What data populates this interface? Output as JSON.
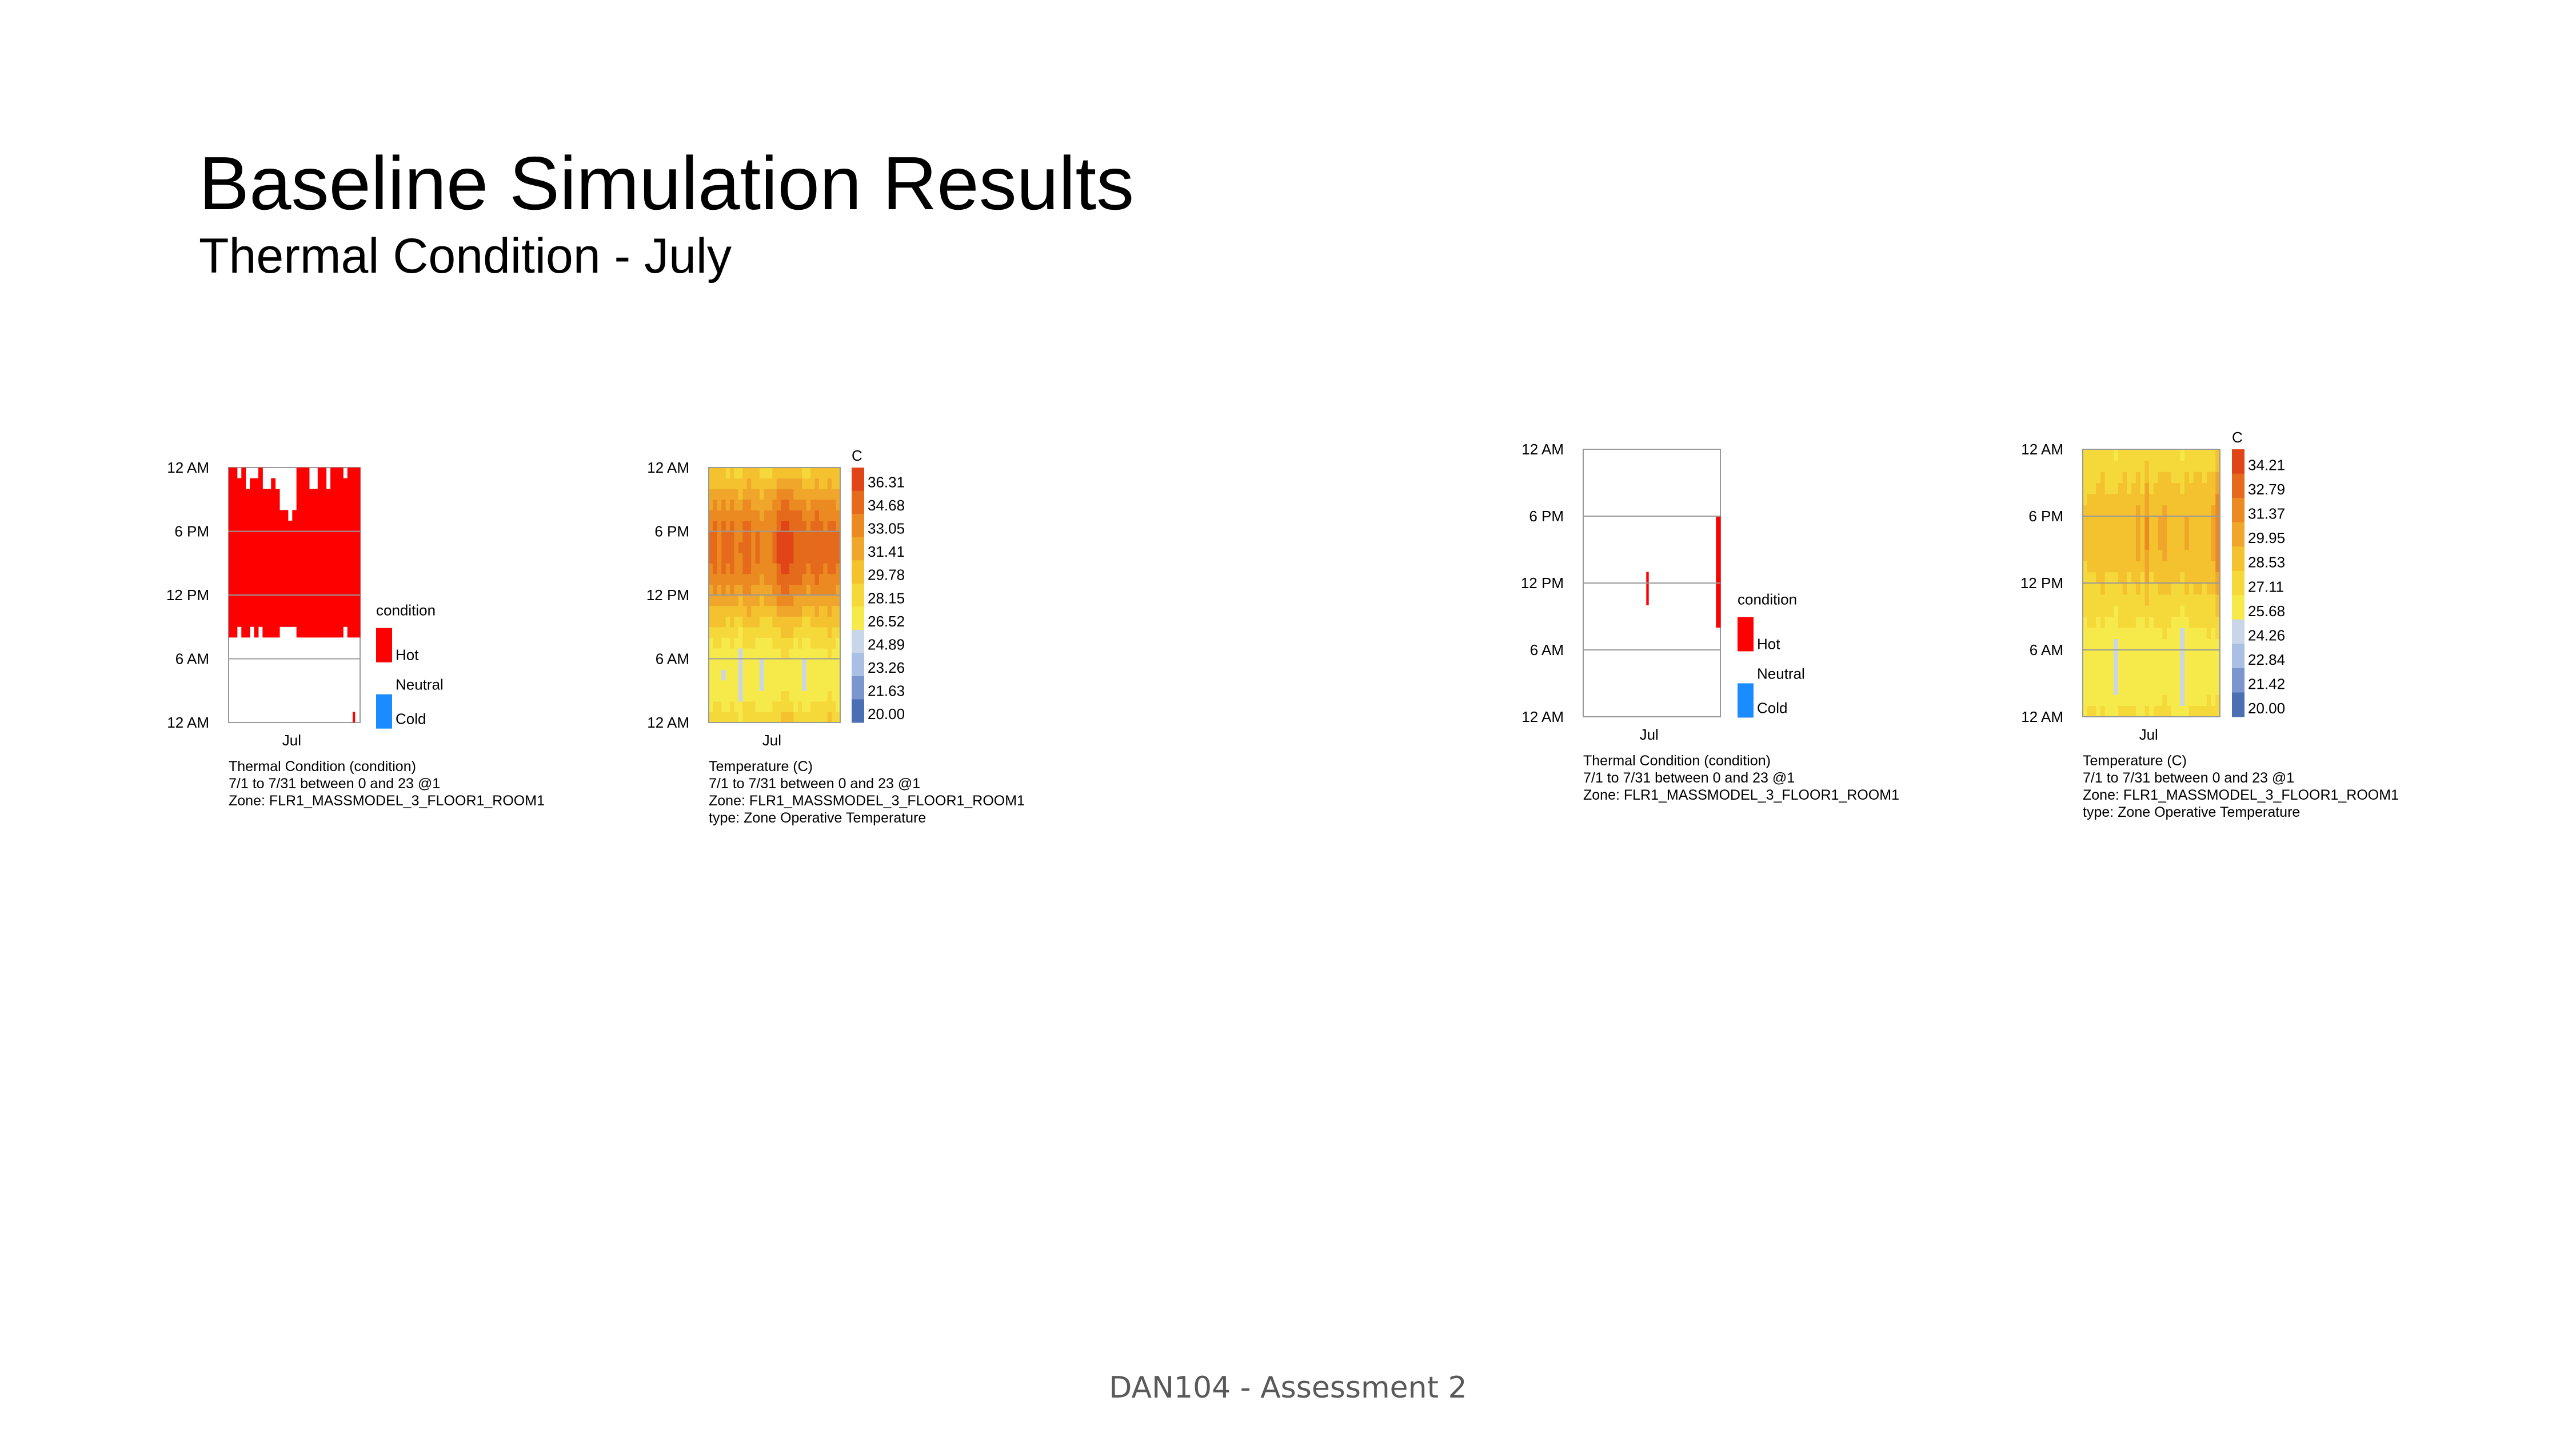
{
  "slide": {
    "title": "Baseline Simulation Results",
    "subtitle": "Thermal Condition - July",
    "footer": "DAN104 - Assessment 2"
  },
  "colors": {
    "hot": "#ff0000",
    "cold": "#1a8cff",
    "scale": [
      "#4a6fb3",
      "#7b96cf",
      "#a9bfe3",
      "#c9d6e8",
      "#f6ea4a",
      "#f5d93a",
      "#f3c22e",
      "#f0a62a",
      "#ec8a22",
      "#e66a1c",
      "#e04417"
    ]
  },
  "chart_data": [
    {
      "type": "heatmap",
      "id": "baseline-condition",
      "y_ticks": [
        "12 AM",
        "6 PM",
        "12 PM",
        "6 AM",
        "12 AM"
      ],
      "x_tick": "Jul",
      "legend_title": "condition",
      "legend_entries": [
        "Hot",
        "Neutral",
        "Cold"
      ],
      "caption": [
        "Thermal Condition (condition)",
        "7/1 to 7/31 between 0 and 23 @1",
        "Zone: FLR1_MASSMODEL_3_FLOOR1_ROOM1"
      ],
      "grid": true,
      "days": 31,
      "hot_hours_per_day": [
        [
          [
            8,
            23
          ]
        ],
        [
          [
            8,
            23
          ]
        ],
        [
          [
            9,
            22
          ]
        ],
        [
          [
            8,
            23
          ]
        ],
        [
          [
            8,
            21
          ]
        ],
        [
          [
            9,
            22
          ]
        ],
        [
          [
            8,
            22
          ]
        ],
        [
          [
            9,
            23
          ]
        ],
        [
          [
            8,
            21
          ]
        ],
        [
          [
            8,
            21
          ]
        ],
        [
          [
            8,
            22
          ]
        ],
        [
          [
            8,
            21
          ]
        ],
        [
          [
            9,
            19
          ]
        ],
        [
          [
            9,
            19
          ]
        ],
        [
          [
            9,
            18
          ]
        ],
        [
          [
            9,
            19
          ]
        ],
        [
          [
            8,
            23
          ]
        ],
        [
          [
            8,
            23
          ]
        ],
        [
          [
            8,
            23
          ]
        ],
        [
          [
            8,
            21
          ]
        ],
        [
          [
            8,
            21
          ]
        ],
        [
          [
            8,
            23
          ]
        ],
        [
          [
            8,
            23
          ]
        ],
        [
          [
            8,
            21
          ]
        ],
        [
          [
            8,
            23
          ]
        ],
        [
          [
            8,
            23
          ]
        ],
        [
          [
            8,
            23
          ]
        ],
        [
          [
            9,
            22
          ]
        ],
        [
          [
            8,
            23
          ]
        ],
        [
          [
            8,
            23
          ],
          [
            0,
            0
          ]
        ],
        [
          [
            8,
            23
          ]
        ]
      ]
    },
    {
      "type": "heatmap",
      "id": "baseline-temperature",
      "unit_label": "C",
      "y_ticks": [
        "12 AM",
        "6 PM",
        "12 PM",
        "6 AM",
        "12 AM"
      ],
      "x_tick": "Jul",
      "legend_values": [
        "36.31",
        "34.68",
        "33.05",
        "31.41",
        "29.78",
        "28.15",
        "26.52",
        "24.89",
        "23.26",
        "21.63",
        "20.00"
      ],
      "caption": [
        "Temperature (C)",
        "7/1 to 7/31 between 0 and 23 @1",
        "Zone: FLR1_MASSMODEL_3_FLOOR1_ROOM1",
        "type: Zone Operative Temperature"
      ],
      "range": [
        20.0,
        36.31
      ],
      "daily_min": [
        26.2,
        26.5,
        26.8,
        25.9,
        26.0,
        26.4,
        26.1,
        25.2,
        26.5,
        26.7,
        26.9,
        26.3,
        25.8,
        26.2,
        26.0,
        26.4,
        26.6,
        26.9,
        27.0,
        26.8,
        26.1,
        26.3,
        25.4,
        26.0,
        26.5,
        26.7,
        26.4,
        26.9,
        27.1,
        26.6,
        26.2
      ],
      "daily_max": [
        33.6,
        34.0,
        33.2,
        34.5,
        33.8,
        34.2,
        33.0,
        33.4,
        33.9,
        34.3,
        33.1,
        33.6,
        32.8,
        32.9,
        33.3,
        33.8,
        35.2,
        35.6,
        35.9,
        35.4,
        34.8,
        34.6,
        34.1,
        33.7,
        34.2,
        34.5,
        34.0,
        33.8,
        34.4,
        34.1,
        33.5
      ]
    },
    {
      "type": "heatmap",
      "id": "improved-condition",
      "y_ticks": [
        "12 AM",
        "6 PM",
        "12 PM",
        "6 AM",
        "12 AM"
      ],
      "x_tick": "Jul",
      "legend_title": "condition",
      "legend_entries": [
        "Hot",
        "Neutral",
        "Cold"
      ],
      "caption": [
        "Thermal Condition (condition)",
        "7/1 to 7/31 between 0 and 23 @1",
        "Zone: FLR1_MASSMODEL_3_FLOOR1_ROOM1"
      ],
      "grid": true,
      "days": 31,
      "hot_hours_per_day": [
        [],
        [],
        [],
        [],
        [],
        [],
        [],
        [],
        [],
        [],
        [],
        [],
        [],
        [],
        [
          [
            10,
            12
          ]
        ],
        [],
        [],
        [],
        [],
        [],
        [],
        [],
        [],
        [],
        [],
        [],
        [],
        [],
        [],
        [],
        [
          [
            8,
            17
          ]
        ]
      ]
    },
    {
      "type": "heatmap",
      "id": "improved-temperature",
      "unit_label": "C",
      "y_ticks": [
        "12 AM",
        "6 PM",
        "12 PM",
        "6 AM",
        "12 AM"
      ],
      "x_tick": "Jul",
      "legend_values": [
        "34.21",
        "32.79",
        "31.37",
        "29.95",
        "28.53",
        "27.11",
        "25.68",
        "24.26",
        "22.84",
        "21.42",
        "20.00"
      ],
      "caption": [
        "Temperature (C)",
        "7/1 to 7/31 between 0 and 23 @1",
        "Zone: FLR1_MASSMODEL_3_FLOOR1_ROOM1",
        "type: Zone Operative Temperature"
      ],
      "range": [
        20.0,
        34.21
      ],
      "daily_min": [
        25.6,
        25.9,
        26.0,
        25.5,
        25.7,
        25.8,
        25.6,
        24.9,
        25.9,
        26.0,
        26.1,
        25.8,
        25.4,
        25.6,
        25.5,
        25.8,
        25.9,
        26.0,
        26.2,
        26.0,
        25.6,
        25.7,
        24.6,
        25.5,
        25.8,
        25.9,
        25.7,
        26.0,
        26.1,
        25.9,
        25.7
      ],
      "daily_max": [
        28.0,
        28.3,
        28.1,
        28.6,
        29.0,
        28.4,
        28.2,
        28.5,
        28.8,
        28.9,
        28.3,
        28.7,
        29.6,
        28.2,
        30.6,
        28.4,
        28.8,
        29.1,
        29.3,
        28.9,
        28.5,
        28.7,
        28.4,
        29.2,
        28.6,
        28.9,
        29.0,
        28.5,
        28.8,
        29.4,
        31.4
      ]
    }
  ]
}
